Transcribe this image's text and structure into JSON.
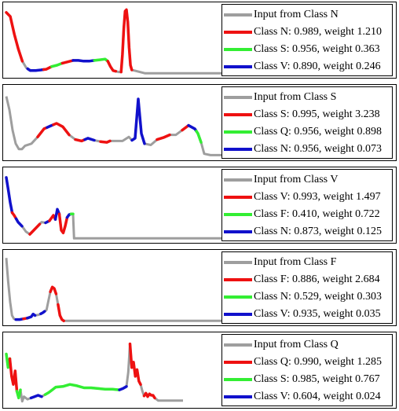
{
  "colors": {
    "input": "#9e9e9e",
    "first": "#ee1111",
    "second": "#33ee33",
    "third": "#1111cc"
  },
  "chart_data": [
    {
      "type": "line",
      "legend_placement": "top-right",
      "legend": [
        "Input from Class N",
        "Class N: 0.989, weight 1.210",
        "Class S: 0.956, weight 0.363",
        "Class V: 0.890, weight 0.246"
      ],
      "signal": [
        [
          0,
          0.92
        ],
        [
          3,
          0.86
        ],
        [
          6,
          0.6
        ],
        [
          9,
          0.38
        ],
        [
          12,
          0.2
        ],
        [
          15,
          0.1
        ],
        [
          18,
          0.06
        ],
        [
          22,
          0.06
        ],
        [
          26,
          0.07
        ],
        [
          30,
          0.08
        ],
        [
          34,
          0.12
        ],
        [
          38,
          0.14
        ],
        [
          42,
          0.17
        ],
        [
          46,
          0.19
        ],
        [
          50,
          0.21
        ],
        [
          54,
          0.21
        ],
        [
          58,
          0.2
        ],
        [
          62,
          0.2
        ],
        [
          66,
          0.21
        ],
        [
          70,
          0.22
        ],
        [
          74,
          0.23
        ],
        [
          76,
          0.2
        ],
        [
          78,
          0.12
        ],
        [
          80,
          0.06
        ],
        [
          82,
          0.05
        ],
        [
          84,
          0.04
        ],
        [
          86,
          0.04
        ],
        [
          87,
          0.3
        ],
        [
          88,
          0.68
        ],
        [
          89,
          0.94
        ],
        [
          90,
          0.96
        ],
        [
          91,
          0.78
        ],
        [
          92,
          0.4
        ],
        [
          93,
          0.14
        ],
        [
          94,
          0.07
        ],
        [
          96,
          0.06
        ],
        [
          100,
          0.04
        ],
        [
          104,
          0.02
        ],
        [
          110,
          0.02
        ],
        [
          120,
          0.02
        ],
        [
          130,
          0.02
        ],
        [
          140,
          0.02
        ],
        [
          150,
          0.02
        ],
        [
          160,
          0.02
        ],
        [
          170,
          0.02
        ],
        [
          180,
          0.02
        ],
        [
          190,
          0.02
        ],
        [
          200,
          0.02
        ]
      ],
      "segments": [
        {
          "cls": "first",
          "from": 0,
          "to": 12
        },
        {
          "cls": "third",
          "from": 16,
          "to": 28
        },
        {
          "cls": "first",
          "from": 28,
          "to": 34
        },
        {
          "cls": "second",
          "from": 34,
          "to": 42
        },
        {
          "cls": "first",
          "from": 42,
          "to": 50
        },
        {
          "cls": "third",
          "from": 50,
          "to": 66
        },
        {
          "cls": "second",
          "from": 66,
          "to": 76
        },
        {
          "cls": "first",
          "from": 76,
          "to": 82
        },
        {
          "cls": "first",
          "from": 86,
          "to": 94
        }
      ]
    },
    {
      "type": "line",
      "legend_placement": "top-right",
      "legend": [
        "Input from Class S",
        "Class S: 0.995, weight 3.238",
        "Class Q: 0.956, weight 0.898",
        "Class N: 0.956, weight 0.073"
      ],
      "signal": [
        [
          0,
          0.9
        ],
        [
          2,
          0.7
        ],
        [
          4,
          0.4
        ],
        [
          6,
          0.2
        ],
        [
          8,
          0.12
        ],
        [
          10,
          0.12
        ],
        [
          12,
          0.17
        ],
        [
          16,
          0.2
        ],
        [
          20,
          0.3
        ],
        [
          24,
          0.42
        ],
        [
          28,
          0.46
        ],
        [
          32,
          0.5
        ],
        [
          36,
          0.45
        ],
        [
          40,
          0.33
        ],
        [
          44,
          0.26
        ],
        [
          48,
          0.24
        ],
        [
          52,
          0.28
        ],
        [
          56,
          0.25
        ],
        [
          60,
          0.23
        ],
        [
          64,
          0.22
        ],
        [
          66,
          0.24
        ],
        [
          70,
          0.24
        ],
        [
          74,
          0.24
        ],
        [
          78,
          0.3
        ],
        [
          80,
          0.25
        ],
        [
          82,
          0.28
        ],
        [
          84,
          0.86
        ],
        [
          86,
          0.35
        ],
        [
          88,
          0.2
        ],
        [
          92,
          0.18
        ],
        [
          96,
          0.26
        ],
        [
          100,
          0.29
        ],
        [
          104,
          0.33
        ],
        [
          108,
          0.33
        ],
        [
          112,
          0.4
        ],
        [
          116,
          0.47
        ],
        [
          120,
          0.42
        ],
        [
          122,
          0.35
        ],
        [
          124,
          0.22
        ],
        [
          126,
          0.05
        ],
        [
          130,
          0.03
        ],
        [
          140,
          0.03
        ],
        [
          150,
          0.03
        ],
        [
          160,
          0.03
        ],
        [
          170,
          0.03
        ]
      ],
      "segments": [
        {
          "cls": "first",
          "from": 20,
          "to": 26
        },
        {
          "cls": "third",
          "from": 26,
          "to": 30
        },
        {
          "cls": "first",
          "from": 30,
          "to": 40
        },
        {
          "cls": "first",
          "from": 44,
          "to": 50
        },
        {
          "cls": "third",
          "from": 50,
          "to": 56
        },
        {
          "cls": "first",
          "from": 60,
          "to": 66
        },
        {
          "cls": "third",
          "from": 80,
          "to": 88
        },
        {
          "cls": "first",
          "from": 96,
          "to": 104
        },
        {
          "cls": "first",
          "from": 112,
          "to": 116
        },
        {
          "cls": "third",
          "from": 116,
          "to": 121
        },
        {
          "cls": "second",
          "from": 121,
          "to": 124
        }
      ]
    },
    {
      "type": "line",
      "legend_placement": "top-right",
      "legend": [
        "Input from Class V",
        "Class V: 0.993, weight 1.497",
        "Class F: 0.410, weight 0.722",
        "Class N: 0.873, weight 0.125"
      ],
      "signal": [
        [
          0,
          0.92
        ],
        [
          2,
          0.74
        ],
        [
          4,
          0.55
        ],
        [
          6,
          0.4
        ],
        [
          8,
          0.36
        ],
        [
          10,
          0.31
        ],
        [
          12,
          0.26
        ],
        [
          16,
          0.2
        ],
        [
          20,
          0.12
        ],
        [
          24,
          0.08
        ],
        [
          28,
          0.14
        ],
        [
          32,
          0.2
        ],
        [
          36,
          0.26
        ],
        [
          40,
          0.25
        ],
        [
          44,
          0.28
        ],
        [
          48,
          0.36
        ],
        [
          50,
          0.3
        ],
        [
          52,
          0.45
        ],
        [
          54,
          0.38
        ],
        [
          56,
          0.14
        ],
        [
          58,
          0.1
        ],
        [
          60,
          0.2
        ],
        [
          62,
          0.33
        ],
        [
          64,
          0.37
        ],
        [
          66,
          0.38
        ],
        [
          68,
          0.38
        ],
        [
          69,
          0.02
        ],
        [
          75,
          0.02
        ],
        [
          80,
          0.02
        ],
        [
          90,
          0.02
        ],
        [
          100,
          0.02
        ],
        [
          110,
          0.02
        ],
        [
          120,
          0.02
        ],
        [
          130,
          0.02
        ],
        [
          140,
          0.02
        ],
        [
          150,
          0.02
        ],
        [
          160,
          0.02
        ],
        [
          170,
          0.02
        ],
        [
          180,
          0.02
        ],
        [
          190,
          0.02
        ],
        [
          200,
          0.02
        ],
        [
          210,
          0.02
        ],
        [
          220,
          0.02
        ],
        [
          230,
          0.02
        ],
        [
          240,
          0.02
        ],
        [
          250,
          0.02
        ],
        [
          260,
          0.02
        ],
        [
          270,
          0.02
        ]
      ],
      "segments": [
        {
          "cls": "third",
          "from": 0,
          "to": 6
        },
        {
          "cls": "first",
          "from": 6,
          "to": 10
        },
        {
          "cls": "third",
          "from": 10,
          "to": 16
        },
        {
          "cls": "first",
          "from": 24,
          "to": 34
        },
        {
          "cls": "third",
          "from": 40,
          "to": 44
        },
        {
          "cls": "first",
          "from": 44,
          "to": 50
        },
        {
          "cls": "third",
          "from": 50,
          "to": 54
        },
        {
          "cls": "first",
          "from": 54,
          "to": 62
        },
        {
          "cls": "third",
          "from": 62,
          "to": 66
        },
        {
          "cls": "second",
          "from": 66,
          "to": 68
        }
      ]
    },
    {
      "type": "line",
      "legend_placement": "top-right",
      "legend": [
        "Input from Class F",
        "Class F: 0.886, weight 2.684",
        "Class N: 0.529, weight 0.303",
        "Class V: 0.935, weight 0.035"
      ],
      "signal": [
        [
          0,
          0.95
        ],
        [
          2,
          0.6
        ],
        [
          4,
          0.3
        ],
        [
          6,
          0.1
        ],
        [
          8,
          0.05
        ],
        [
          10,
          0.04
        ],
        [
          14,
          0.04
        ],
        [
          18,
          0.05
        ],
        [
          22,
          0.06
        ],
        [
          26,
          0.08
        ],
        [
          28,
          0.12
        ],
        [
          30,
          0.1
        ],
        [
          34,
          0.11
        ],
        [
          38,
          0.14
        ],
        [
          42,
          0.18
        ],
        [
          44,
          0.32
        ],
        [
          46,
          0.45
        ],
        [
          48,
          0.52
        ],
        [
          50,
          0.5
        ],
        [
          52,
          0.42
        ],
        [
          54,
          0.26
        ],
        [
          56,
          0.1
        ],
        [
          58,
          0.04
        ],
        [
          60,
          0.02
        ],
        [
          70,
          0.02
        ],
        [
          80,
          0.02
        ],
        [
          90,
          0.02
        ],
        [
          100,
          0.02
        ],
        [
          110,
          0.02
        ],
        [
          120,
          0.02
        ],
        [
          130,
          0.02
        ],
        [
          140,
          0.02
        ],
        [
          150,
          0.02
        ],
        [
          160,
          0.02
        ],
        [
          170,
          0.02
        ],
        [
          180,
          0.02
        ],
        [
          190,
          0.02
        ],
        [
          200,
          0.02
        ],
        [
          210,
          0.02
        ],
        [
          220,
          0.02
        ],
        [
          230,
          0.02
        ],
        [
          240,
          0.02
        ],
        [
          250,
          0.02
        ],
        [
          260,
          0.02
        ],
        [
          270,
          0.02
        ],
        [
          280,
          0.02
        ]
      ],
      "segments": [
        {
          "cls": "third",
          "from": 10,
          "to": 18
        },
        {
          "cls": "first",
          "from": 18,
          "to": 22
        },
        {
          "cls": "third",
          "from": 22,
          "to": 30
        },
        {
          "cls": "third",
          "from": 36,
          "to": 40
        },
        {
          "cls": "first",
          "from": 46,
          "to": 52
        },
        {
          "cls": "first",
          "from": 54,
          "to": 60
        }
      ]
    },
    {
      "type": "line",
      "legend_placement": "top-right",
      "legend": [
        "Input from Class Q",
        "Class Q: 0.990, weight 1.285",
        "Class S: 0.985, weight 0.767",
        "Class V: 0.604, weight 0.024"
      ],
      "signal": [
        [
          0,
          0.75
        ],
        [
          1,
          0.55
        ],
        [
          2,
          0.68
        ],
        [
          3,
          0.42
        ],
        [
          4,
          0.3
        ],
        [
          5,
          0.5
        ],
        [
          6,
          0.2
        ],
        [
          7,
          0.1
        ],
        [
          8,
          0.22
        ],
        [
          9,
          0.05
        ],
        [
          10,
          0.12
        ],
        [
          12,
          0.08
        ],
        [
          14,
          0.1
        ],
        [
          16,
          0.12
        ],
        [
          18,
          0.14
        ],
        [
          20,
          0.12
        ],
        [
          22,
          0.15
        ],
        [
          24,
          0.18
        ],
        [
          26,
          0.22
        ],
        [
          28,
          0.26
        ],
        [
          32,
          0.27
        ],
        [
          36,
          0.3
        ],
        [
          40,
          0.28
        ],
        [
          44,
          0.25
        ],
        [
          48,
          0.25
        ],
        [
          52,
          0.24
        ],
        [
          56,
          0.23
        ],
        [
          60,
          0.23
        ],
        [
          64,
          0.22
        ],
        [
          66,
          0.24
        ],
        [
          68,
          0.27
        ],
        [
          69,
          0.48
        ],
        [
          70,
          0.9
        ],
        [
          71,
          0.55
        ],
        [
          72,
          0.63
        ],
        [
          73,
          0.42
        ],
        [
          74,
          0.52
        ],
        [
          75,
          0.35
        ],
        [
          76,
          0.3
        ],
        [
          77,
          0.2
        ],
        [
          78,
          0.13
        ],
        [
          79,
          0.17
        ],
        [
          80,
          0.12
        ],
        [
          81,
          0.16
        ],
        [
          82,
          0.14
        ],
        [
          83,
          0.14
        ],
        [
          84,
          0.1
        ],
        [
          86,
          0.06
        ],
        [
          88,
          0.06
        ],
        [
          92,
          0.06
        ],
        [
          96,
          0.06
        ],
        [
          100,
          0.06
        ]
      ],
      "segments": [
        {
          "cls": "second",
          "from": 0,
          "to": 2
        },
        {
          "cls": "first",
          "from": 2,
          "to": 6
        },
        {
          "cls": "second",
          "from": 6,
          "to": 8
        },
        {
          "cls": "third",
          "from": 14,
          "to": 20
        },
        {
          "cls": "second",
          "from": 22,
          "to": 64
        },
        {
          "cls": "third",
          "from": 64,
          "to": 68
        },
        {
          "cls": "first",
          "from": 70,
          "to": 76
        },
        {
          "cls": "first",
          "from": 78,
          "to": 84
        }
      ]
    }
  ]
}
